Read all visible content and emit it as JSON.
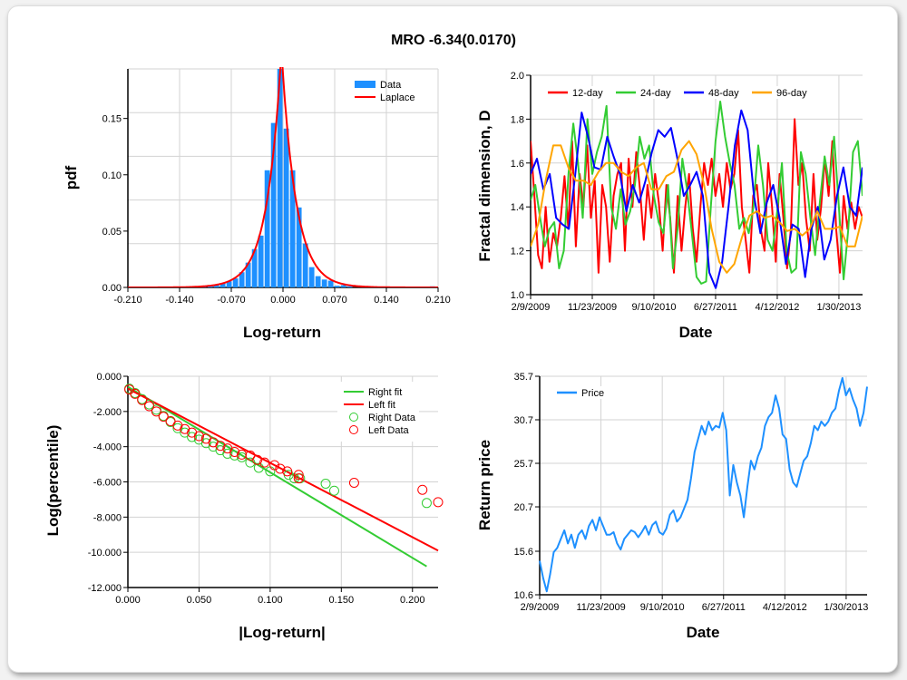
{
  "title": "MRO -6.34(0.0170)",
  "colors": {
    "hist": "#1e90ff",
    "laplace": "#ff0000",
    "d12": "#ff0000",
    "d24": "#33cc33",
    "d48": "#0000ff",
    "d96": "#ffa500",
    "right": "#33cc33",
    "left": "#ff0000",
    "price": "#1e90ff",
    "grid": "#d3d3d3"
  },
  "chart_data": [
    {
      "type": "bar",
      "title": "",
      "xlabel": "Log-return",
      "ylabel": "pdf",
      "xlim": [
        -0.21,
        0.21
      ],
      "ylim": [
        0,
        0.194
      ],
      "xticks": [
        "-0.210",
        "-0.140",
        "-0.070",
        "0.000",
        "0.070",
        "0.140",
        "0.210"
      ],
      "xtick_values": [
        -0.21,
        -0.14,
        -0.07,
        0,
        0.07,
        0.14,
        0.21
      ],
      "yticks": [
        "0.00",
        "0.05",
        "0.10",
        "0.15"
      ],
      "ytick_values": [
        0,
        0.05,
        0.1,
        0.15
      ],
      "legend": [
        "Data",
        "Laplace"
      ],
      "legend_position": "top-right",
      "bin_width": 0.0086,
      "bin_centers": [
        -0.1244,
        -0.1158,
        -0.1072,
        -0.0986,
        -0.09,
        -0.0814,
        -0.0728,
        -0.0642,
        -0.0556,
        -0.047,
        -0.0384,
        -0.0298,
        -0.0212,
        -0.0126,
        -0.004,
        0.0046,
        0.0132,
        0.0218,
        0.0304,
        0.039,
        0.0476,
        0.0562,
        0.0648,
        0.0734,
        0.082,
        0.0906,
        0.2024
      ],
      "values": [
        0.001,
        0.001,
        0.001,
        0.0014,
        0.002,
        0.0035,
        0.0054,
        0.008,
        0.0135,
        0.022,
        0.034,
        0.046,
        0.104,
        0.146,
        0.2,
        0.141,
        0.104,
        0.071,
        0.039,
        0.018,
        0.01,
        0.007,
        0.006,
        0.0015,
        0.002,
        0.001,
        0.001
      ],
      "laplace": {
        "mu": -0.002,
        "peak": 0.21,
        "b": 0.0196
      }
    },
    {
      "type": "line",
      "xlabel": "Date",
      "ylabel": "Fractal dimension, D",
      "ylim": [
        1.0,
        2.0
      ],
      "x_days_range": [
        0,
        1545
      ],
      "xticks": [
        "2/9/2009",
        "11/23/2009",
        "9/10/2010",
        "6/27/2011",
        "4/12/2012",
        "1/30/2013"
      ],
      "xtick_days": [
        0,
        287,
        574,
        861,
        1148,
        1435
      ],
      "yticks": [
        "1.0",
        "1.2",
        "1.4",
        "1.6",
        "1.8",
        "2.0"
      ],
      "ytick_values": [
        1.0,
        1.2,
        1.4,
        1.6,
        1.8,
        2.0
      ],
      "legend_position": "top",
      "series": [
        {
          "name": "12-day",
          "values": [
            1.7,
            1.45,
            1.18,
            1.12,
            1.4,
            1.15,
            1.28,
            1.22,
            1.35,
            1.54,
            1.3,
            1.7,
            1.22,
            1.55,
            1.4,
            1.68,
            1.35,
            1.52,
            1.1,
            1.5,
            1.4,
            1.15,
            1.45,
            1.55,
            1.6,
            1.2,
            1.62,
            1.4,
            1.65,
            1.48,
            1.25,
            1.5,
            1.35,
            1.55,
            1.42,
            1.2,
            1.5,
            1.35,
            1.1,
            1.45,
            1.2,
            1.4,
            1.55,
            1.3,
            1.15,
            1.4,
            1.6,
            1.5,
            1.62,
            1.45,
            1.55,
            1.4,
            1.6,
            1.48,
            1.55,
            1.75,
            1.4,
            1.25,
            1.1,
            1.45,
            1.5,
            1.3,
            1.2,
            1.6,
            1.4,
            1.15,
            1.55,
            1.35,
            1.12,
            1.3,
            1.8,
            1.5,
            1.6,
            1.35,
            1.2,
            1.55,
            1.25,
            1.4,
            1.62,
            1.45,
            1.7,
            1.3,
            1.1,
            1.45,
            1.3,
            1.42,
            1.3,
            1.4,
            1.35
          ]
        },
        {
          "name": "24-day",
          "values": [
            1.43,
            1.5,
            1.35,
            1.22,
            1.3,
            1.33,
            1.12,
            1.2,
            1.55,
            1.78,
            1.6,
            1.35,
            1.8,
            1.55,
            1.65,
            1.72,
            1.86,
            1.4,
            1.3,
            1.48,
            1.32,
            1.38,
            1.5,
            1.72,
            1.62,
            1.68,
            1.45,
            1.33,
            1.28,
            1.5,
            1.12,
            1.3,
            1.62,
            1.48,
            1.28,
            1.08,
            1.05,
            1.06,
            1.4,
            1.7,
            1.88,
            1.72,
            1.6,
            1.5,
            1.3,
            1.35,
            1.28,
            1.4,
            1.68,
            1.5,
            1.25,
            1.2,
            1.38,
            1.6,
            1.2,
            1.1,
            1.12,
            1.65,
            1.55,
            1.35,
            1.18,
            1.42,
            1.63,
            1.5,
            1.72,
            1.4,
            1.07,
            1.3,
            1.65,
            1.7,
            1.45
          ]
        },
        {
          "name": "48-day",
          "values": [
            1.55,
            1.62,
            1.48,
            1.55,
            1.35,
            1.32,
            1.3,
            1.55,
            1.83,
            1.72,
            1.58,
            1.57,
            1.72,
            1.63,
            1.55,
            1.38,
            1.5,
            1.42,
            1.52,
            1.65,
            1.75,
            1.72,
            1.76,
            1.62,
            1.45,
            1.5,
            1.56,
            1.45,
            1.1,
            1.03,
            1.15,
            1.4,
            1.68,
            1.84,
            1.75,
            1.45,
            1.28,
            1.42,
            1.5,
            1.35,
            1.14,
            1.32,
            1.3,
            1.08,
            1.3,
            1.4,
            1.16,
            1.25,
            1.45,
            1.58,
            1.4,
            1.36,
            1.58
          ]
        },
        {
          "name": "96-day",
          "values": [
            1.22,
            1.32,
            1.52,
            1.68,
            1.68,
            1.58,
            1.52,
            1.52,
            1.5,
            1.56,
            1.6,
            1.6,
            1.56,
            1.54,
            1.58,
            1.6,
            1.48,
            1.48,
            1.54,
            1.56,
            1.66,
            1.7,
            1.64,
            1.5,
            1.3,
            1.15,
            1.1,
            1.14,
            1.26,
            1.36,
            1.38,
            1.35,
            1.36,
            1.33,
            1.29,
            1.3,
            1.27,
            1.3,
            1.38,
            1.3,
            1.3,
            1.31,
            1.22,
            1.22,
            1.36
          ]
        }
      ]
    },
    {
      "type": "scatter",
      "xlabel": "|Log-return|",
      "ylabel": "Log(percentile)",
      "xlim": [
        0,
        0.218
      ],
      "ylim": [
        -12,
        0
      ],
      "xticks": [
        "0.000",
        "0.050",
        "0.100",
        "0.150",
        "0.200"
      ],
      "xtick_values": [
        0,
        0.05,
        0.1,
        0.15,
        0.2
      ],
      "yticks": [
        "0.000",
        "-2.000",
        "-4.000",
        "-6.000",
        "-8.000",
        "-10.000",
        "-12.000"
      ],
      "ytick_values": [
        0,
        -2,
        -4,
        -6,
        -8,
        -10,
        -12
      ],
      "legend": [
        "Right fit",
        "Left fit",
        "Right Data",
        "Left Data"
      ],
      "legend_position": "top-right",
      "right_fit": [
        [
          0,
          -0.6
        ],
        [
          0.21,
          -10.8
        ]
      ],
      "left_fit": [
        [
          0,
          -0.7
        ],
        [
          0.218,
          -9.9
        ]
      ],
      "right_data": [
        [
          0.001,
          -0.7
        ],
        [
          0.005,
          -0.95
        ],
        [
          0.01,
          -1.3
        ],
        [
          0.015,
          -1.6
        ],
        [
          0.02,
          -1.9
        ],
        [
          0.025,
          -2.25
        ],
        [
          0.03,
          -2.6
        ],
        [
          0.035,
          -2.95
        ],
        [
          0.04,
          -3.2
        ],
        [
          0.045,
          -3.45
        ],
        [
          0.05,
          -3.6
        ],
        [
          0.055,
          -3.8
        ],
        [
          0.06,
          -4.0
        ],
        [
          0.065,
          -4.2
        ],
        [
          0.07,
          -4.4
        ],
        [
          0.075,
          -4.5
        ],
        [
          0.08,
          -4.6
        ],
        [
          0.086,
          -4.9
        ],
        [
          0.092,
          -5.2
        ],
        [
          0.1,
          -5.4
        ],
        [
          0.113,
          -5.6
        ],
        [
          0.117,
          -5.8
        ],
        [
          0.121,
          -5.8
        ],
        [
          0.139,
          -6.1
        ],
        [
          0.145,
          -6.5
        ],
        [
          0.21,
          -7.2
        ]
      ],
      "left_data": [
        [
          0.001,
          -0.75
        ],
        [
          0.005,
          -1.0
        ],
        [
          0.01,
          -1.35
        ],
        [
          0.015,
          -1.7
        ],
        [
          0.02,
          -2.0
        ],
        [
          0.025,
          -2.3
        ],
        [
          0.03,
          -2.55
        ],
        [
          0.035,
          -2.8
        ],
        [
          0.04,
          -3.0
        ],
        [
          0.045,
          -3.2
        ],
        [
          0.05,
          -3.4
        ],
        [
          0.055,
          -3.55
        ],
        [
          0.06,
          -3.75
        ],
        [
          0.065,
          -3.95
        ],
        [
          0.07,
          -4.1
        ],
        [
          0.075,
          -4.3
        ],
        [
          0.08,
          -4.45
        ],
        [
          0.086,
          -4.5
        ],
        [
          0.091,
          -4.75
        ],
        [
          0.096,
          -4.9
        ],
        [
          0.103,
          -5.05
        ],
        [
          0.107,
          -5.25
        ],
        [
          0.112,
          -5.4
        ],
        [
          0.12,
          -5.6
        ],
        [
          0.12,
          -5.8
        ],
        [
          0.159,
          -6.05
        ],
        [
          0.207,
          -6.45
        ],
        [
          0.218,
          -7.15
        ]
      ]
    },
    {
      "type": "line",
      "xlabel": "Date",
      "ylabel": "Return price",
      "ylim": [
        10.6,
        35.7
      ],
      "x_days_range": [
        0,
        1533
      ],
      "xticks": [
        "2/9/2009",
        "11/23/2009",
        "9/10/2010",
        "6/27/2011",
        "4/12/2012",
        "1/30/2013"
      ],
      "xtick_days": [
        0,
        287,
        574,
        861,
        1148,
        1435
      ],
      "yticks": [
        "10.6",
        "15.6",
        "20.7",
        "25.7",
        "30.7",
        "35.7"
      ],
      "ytick_values": [
        10.6,
        15.6,
        20.7,
        25.7,
        30.7,
        35.7
      ],
      "legend": [
        "Price"
      ],
      "legend_position": "top-left",
      "series": [
        {
          "name": "Price",
          "values": [
            14.5,
            12.5,
            11,
            13,
            15.5,
            16,
            17,
            18,
            16.5,
            17.5,
            16,
            17.5,
            18,
            17,
            18.5,
            19.2,
            18,
            19.5,
            18.5,
            17.5,
            17.5,
            17.8,
            16.5,
            15.8,
            17,
            17.5,
            18,
            17.8,
            17.2,
            17.8,
            18.5,
            17.5,
            18.6,
            19,
            17.8,
            17.5,
            18.2,
            19.8,
            20.3,
            19,
            19.5,
            20.5,
            21.5,
            24,
            27,
            28.5,
            30,
            29,
            30.5,
            29.5,
            30,
            29.8,
            31.5,
            29.5,
            22,
            25.5,
            23.5,
            22,
            19.5,
            23,
            26,
            25,
            26.5,
            27.5,
            30,
            31,
            31.5,
            33.5,
            32,
            29,
            28.5,
            25,
            23.5,
            23,
            24.5,
            26,
            26.5,
            28,
            30,
            29.5,
            30.5,
            30,
            30.5,
            31.5,
            32,
            34,
            35.5,
            33.5,
            34.3,
            33,
            32,
            30,
            31.5,
            34.5
          ]
        }
      ]
    }
  ]
}
